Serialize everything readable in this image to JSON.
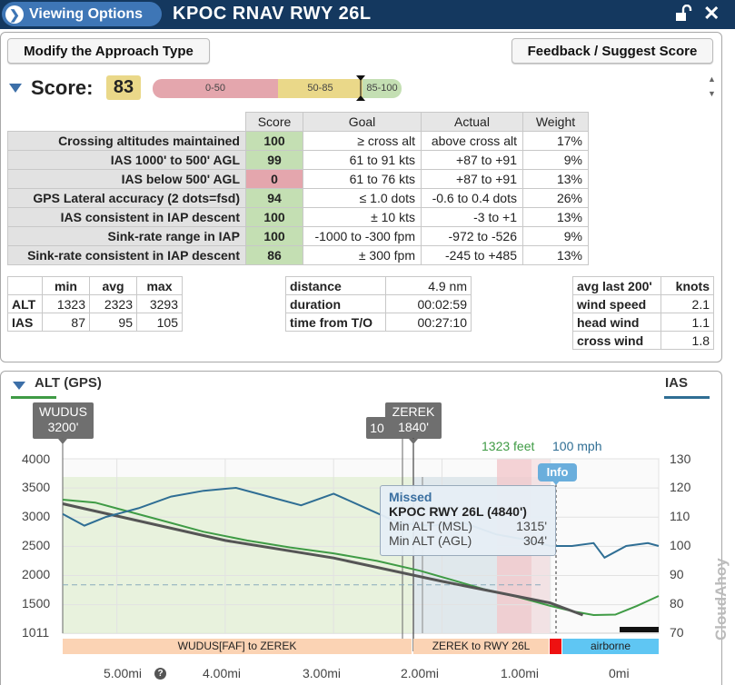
{
  "header": {
    "viewing_options_label": "Viewing Options",
    "title": "KPOC RNAV RWY 26L"
  },
  "buttons": {
    "modify": "Modify the Approach Type",
    "feedback": "Feedback / Suggest Score"
  },
  "score": {
    "label": "Score:",
    "value": "83",
    "bands": [
      "0-50",
      "50-85",
      "85-100"
    ],
    "value_numeric": 83
  },
  "score_table": {
    "headers": [
      "Score",
      "Goal",
      "Actual",
      "Weight"
    ],
    "rows": [
      {
        "label": "Crossing altitudes maintained",
        "score": "100",
        "goal": "≥ cross alt",
        "actual": "above cross alt",
        "weight": "17%",
        "color": "green"
      },
      {
        "label": "IAS 1000' to 500' AGL",
        "score": "99",
        "goal": "61 to 91 kts",
        "actual": "+87 to +91",
        "weight": "9%",
        "color": "green"
      },
      {
        "label": "IAS below 500' AGL",
        "score": "0",
        "goal": "61 to 76 kts",
        "actual": "+87 to +91",
        "weight": "13%",
        "color": "red"
      },
      {
        "label": "GPS Lateral accuracy (2 dots=fsd)",
        "score": "94",
        "goal": "≤ 1.0 dots",
        "actual": "-0.6 to 0.4 dots",
        "weight": "26%",
        "color": "green"
      },
      {
        "label": "IAS consistent in IAP descent",
        "score": "100",
        "goal": "± 10 kts",
        "actual": "-3 to +1",
        "weight": "13%",
        "color": "green"
      },
      {
        "label": "Sink-rate range in IAP",
        "score": "100",
        "goal": "-1000 to -300 fpm",
        "actual": "-972 to -526",
        "weight": "9%",
        "color": "green"
      },
      {
        "label": "Sink-rate consistent in IAP descent",
        "score": "86",
        "goal": "± 300 fpm",
        "actual": "-245 to +485",
        "weight": "13%",
        "color": "green"
      }
    ]
  },
  "stats": {
    "headers": [
      "min",
      "avg",
      "max"
    ],
    "rows": [
      {
        "label": "ALT",
        "min": "1323",
        "avg": "2323",
        "max": "3293"
      },
      {
        "label": "IAS",
        "min": "87",
        "avg": "95",
        "max": "105"
      }
    ]
  },
  "distance": {
    "rows": [
      {
        "label": "distance",
        "value": "4.9 nm"
      },
      {
        "label": "duration",
        "value": "00:02:59"
      },
      {
        "label": "time from T/O",
        "value": "00:27:10"
      }
    ]
  },
  "wind": {
    "headers": [
      "avg last 200'",
      "knots"
    ],
    "rows": [
      {
        "label": "wind speed",
        "value": "2.1"
      },
      {
        "label": "head wind",
        "value": "1.1"
      },
      {
        "label": "cross wind",
        "value": "1.8"
      }
    ]
  },
  "chart": {
    "alt_label": "ALT (GPS)",
    "ias_label": "IAS",
    "fixes": {
      "wudus": {
        "name": "WUDUS",
        "alt": "3200'"
      },
      "partial": "10",
      "zerek": {
        "name": "ZEREK",
        "alt": "1840'"
      }
    },
    "readout_alt": "1323 feet",
    "readout_ias": "100 mph",
    "info_badge": "Info",
    "tooltip": {
      "title": "Missed",
      "name": "KPOC RWY 26L (4840')",
      "rows": [
        {
          "label": "Min ALT (MSL)",
          "value": "1315'"
        },
        {
          "label": "Min ALT (AGL)",
          "value": "304'"
        }
      ]
    },
    "segments": [
      "WUDUS[FAF] to ZEREK",
      "ZEREK to RWY 26L",
      "airborne"
    ],
    "x_ticks": [
      "5.00mi",
      "4.00mi",
      "3.00mi",
      "2.00mi",
      "1.00mi",
      "0mi"
    ],
    "y_left_ticks": [
      "4000",
      "3500",
      "3000",
      "2500",
      "2000",
      "1500",
      "1011"
    ],
    "y_right_ticks": [
      "130",
      "120",
      "110",
      "100",
      "90",
      "80",
      "70"
    ],
    "watermark": "CloudAhoy"
  },
  "chart_data": {
    "type": "line",
    "xlabel": "",
    "ylabel": "",
    "x_unit": "mi",
    "xlim": [
      5.5,
      0
    ],
    "ylim_left": [
      1011,
      4000
    ],
    "ylim_right": [
      70,
      130
    ],
    "series": [
      {
        "name": "ALT (GPS)",
        "axis": "left",
        "color": "#3f9b45",
        "x": [
          5.5,
          5.2,
          5.0,
          4.6,
          4.2,
          3.8,
          3.4,
          3.0,
          2.6,
          2.2,
          1.9,
          1.6,
          1.3,
          1.0,
          0.8,
          0.6,
          0.4,
          0.2,
          0.0
        ],
        "y": [
          3300,
          3250,
          3150,
          2950,
          2750,
          2600,
          2480,
          2380,
          2250,
          2080,
          1920,
          1760,
          1630,
          1480,
          1390,
          1323,
          1330,
          1480,
          1650
        ]
      },
      {
        "name": "",
        "axis": "left",
        "color": "#555555",
        "x": [
          5.5,
          4.0,
          3.0,
          2.0,
          1.0,
          0.7
        ],
        "y": [
          3230,
          2600,
          2300,
          1900,
          1530,
          1323
        ]
      },
      {
        "name": "IAS",
        "axis": "right",
        "color": "#2f6e94",
        "x": [
          5.5,
          5.3,
          5.1,
          4.8,
          4.5,
          4.2,
          3.9,
          3.6,
          3.3,
          3.0,
          2.7,
          2.4,
          2.1,
          1.8,
          1.5,
          1.2,
          1.0,
          0.8,
          0.6,
          0.5,
          0.3,
          0.1,
          0.0
        ],
        "y": [
          111,
          107,
          110,
          113,
          117,
          119,
          120,
          117,
          114,
          118,
          113,
          108,
          107,
          108,
          104,
          102,
          100,
          100,
          101,
          96,
          100,
          101,
          100
        ]
      }
    ]
  }
}
